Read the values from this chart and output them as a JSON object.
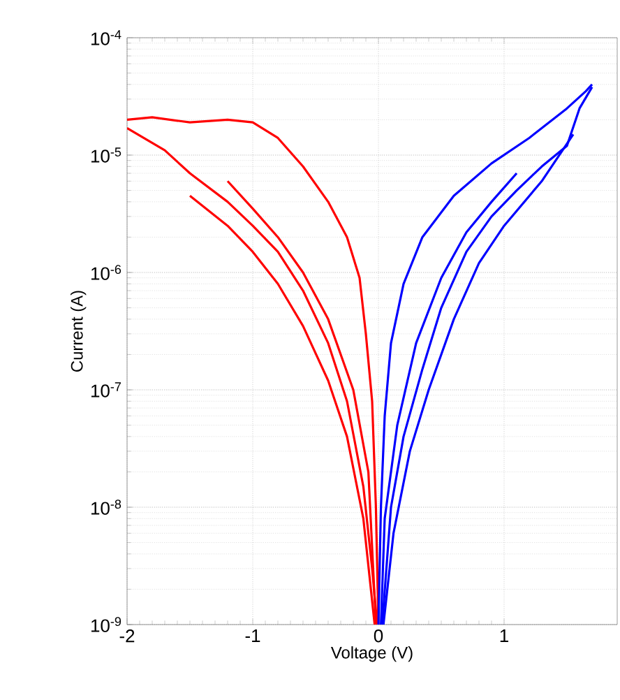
{
  "chart_data": {
    "type": "line",
    "xlabel": "Voltage (V)",
    "ylabel": "Current (A)",
    "log": "y",
    "grid": true,
    "line_style": "solid",
    "xlim": [
      -2,
      1.9
    ],
    "ylim": [
      1e-09,
      0.0001
    ],
    "xticks": [
      -2,
      -1,
      0,
      1
    ],
    "yticks": [
      {
        "value": 1e-09,
        "label": "10$^{-9}$"
      },
      {
        "value": 1e-08,
        "label": "10$^{-8}$"
      },
      {
        "value": 1e-07,
        "label": "10$^{-7}$"
      },
      {
        "value": 1e-06,
        "label": "10$^{-6}$"
      },
      {
        "value": 1e-05,
        "label": "10$^{-5}$"
      },
      {
        "value": 0.0001,
        "label": "10$^{-4}$"
      }
    ],
    "series": [
      {
        "color": "#ff0000",
        "x": [
          0,
          -0.02,
          -0.05,
          -0.1,
          -0.15,
          -0.25,
          -0.4,
          -0.6,
          -0.8,
          -1.0,
          -1.2,
          -1.5,
          -1.8,
          -2.0
        ],
        "values": [
          1e-09,
          1e-08,
          8e-08,
          3e-07,
          9e-07,
          2e-06,
          4e-06,
          8e-06,
          1.4e-05,
          1.9e-05,
          2e-05,
          1.9e-05,
          2.1e-05,
          2e-05
        ]
      },
      {
        "color": "#ff0000",
        "x": [
          -2.0,
          -1.7,
          -1.5,
          -1.2,
          -1.0,
          -0.8,
          -0.6,
          -0.4,
          -0.25,
          -0.12,
          -0.05,
          -0.01
        ],
        "values": [
          1.7e-05,
          1.1e-05,
          7e-06,
          4e-06,
          2.5e-06,
          1.5e-06,
          7e-07,
          2.5e-07,
          8e-08,
          1.5e-08,
          3e-09,
          1e-09
        ]
      },
      {
        "color": "#ff0000",
        "x": [
          -1.5,
          -1.2,
          -1.0,
          -0.8,
          -0.6,
          -0.4,
          -0.25,
          -0.12,
          -0.03
        ],
        "values": [
          4.5e-06,
          2.5e-06,
          1.5e-06,
          8e-07,
          3.5e-07,
          1.2e-07,
          4e-08,
          8e-09,
          1e-09
        ]
      },
      {
        "color": "#ff0000",
        "x": [
          -1.2,
          -1.0,
          -0.8,
          -0.6,
          -0.4,
          -0.2,
          -0.08,
          -0.02
        ],
        "values": [
          6e-06,
          3.5e-06,
          2e-06,
          1e-06,
          4e-07,
          1e-07,
          2e-08,
          1e-09
        ]
      },
      {
        "color": "#0000ff",
        "x": [
          0,
          0.02,
          0.05,
          0.1,
          0.2,
          0.35,
          0.6,
          0.9,
          1.2,
          1.5,
          1.65,
          1.7
        ],
        "values": [
          1e-09,
          1e-08,
          6e-08,
          2.5e-07,
          8e-07,
          2e-06,
          4.5e-06,
          8.5e-06,
          1.4e-05,
          2.5e-05,
          3.5e-05,
          4e-05
        ]
      },
      {
        "color": "#0000ff",
        "x": [
          1.7,
          1.6,
          1.5,
          1.3,
          1.1,
          0.9,
          0.7,
          0.5,
          0.35,
          0.2,
          0.1,
          0.03
        ],
        "values": [
          3.8e-05,
          2.5e-05,
          1.2e-05,
          8e-06,
          5e-06,
          3e-06,
          1.5e-06,
          5e-07,
          1.5e-07,
          4e-08,
          1e-08,
          1e-09
        ]
      },
      {
        "color": "#0000ff",
        "x": [
          1.55,
          1.3,
          1.0,
          0.8,
          0.6,
          0.4,
          0.25,
          0.12,
          0.04
        ],
        "values": [
          1.5e-05,
          6e-06,
          2.5e-06,
          1.2e-06,
          4e-07,
          1e-07,
          3e-08,
          6e-09,
          1e-09
        ]
      },
      {
        "color": "#0000ff",
        "x": [
          1.1,
          0.9,
          0.7,
          0.5,
          0.3,
          0.15,
          0.05,
          0.02
        ],
        "values": [
          7e-06,
          4e-06,
          2.2e-06,
          9e-07,
          2.5e-07,
          5e-08,
          8e-09,
          1e-09
        ]
      }
    ]
  }
}
